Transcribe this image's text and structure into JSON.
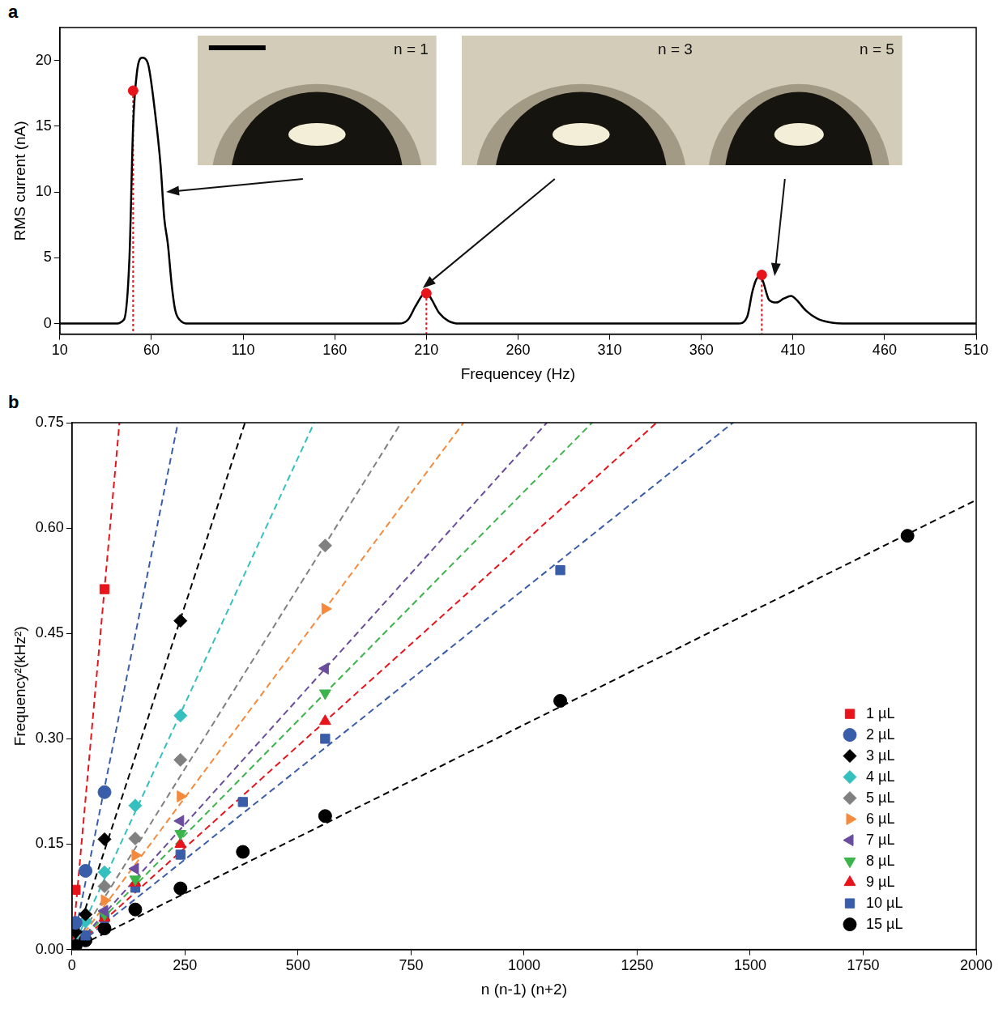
{
  "chart_data": [
    {
      "type": "line",
      "panel": "a",
      "x_label": "Frequencey (Hz)",
      "y_label": "RMS current (nA)",
      "xlim": [
        10,
        510
      ],
      "xticks": [
        10,
        60,
        110,
        160,
        210,
        260,
        310,
        360,
        410,
        460,
        510
      ],
      "ylim": [
        -0.8,
        22.5
      ],
      "yticks": [
        0,
        5,
        10,
        15,
        20
      ],
      "grid": false,
      "series": [
        {
          "type": "line",
          "color": "#000000",
          "x": [
            10,
            40,
            45,
            48,
            50,
            52,
            55,
            58,
            62,
            65,
            67,
            69,
            71,
            73,
            76,
            80,
            195,
            200,
            204,
            208,
            210,
            213,
            217,
            222,
            228,
            380,
            385,
            388,
            391,
            393,
            397,
            401,
            405,
            409,
            412,
            417,
            423,
            430,
            440,
            510
          ],
          "values": [
            0,
            0,
            0.3,
            5,
            15,
            19,
            20.2,
            19.8,
            16,
            12,
            8,
            6,
            3,
            1,
            0.2,
            0,
            0,
            0.3,
            1.3,
            2.2,
            2.4,
            1.8,
            0.8,
            0.2,
            0,
            0,
            0.5,
            2.5,
            3.5,
            3.4,
            1.8,
            1.6,
            1.9,
            2.1,
            1.8,
            1.0,
            0.4,
            0.1,
            0,
            0
          ]
        },
        {
          "type": "scatter",
          "color": "#e8141c",
          "marker": "circle",
          "line_style": "dotted",
          "x": [
            50,
            210,
            393
          ],
          "values": [
            17.7,
            2.3,
            3.7
          ]
        }
      ],
      "annotations": [
        {
          "text": "n = 1",
          "x": 68,
          "y": 10
        },
        {
          "text": "n = 3",
          "x": 208,
          "y": 2.7
        },
        {
          "text": "n = 5",
          "x": 400,
          "y": 3.6
        }
      ]
    },
    {
      "type": "scatter",
      "panel": "b",
      "x_label": "n (n-1) (n+2)",
      "y_label": "Frequency²(kHz²)",
      "xlim": [
        0,
        2000
      ],
      "xticks": [
        0,
        250,
        500,
        750,
        1000,
        1250,
        1500,
        1750,
        2000
      ],
      "ylim": [
        0,
        0.75
      ],
      "yticks": [
        {
          "value": 0,
          "label": "0.00"
        },
        0.15,
        {
          "value": 0.3,
          "label": "0.30"
        },
        0.45,
        {
          "value": 0.6,
          "label": "0.60"
        },
        0.75
      ],
      "grid": false,
      "legend": "lower right",
      "series": [
        {
          "name": "1 µL",
          "color": "#e8141c",
          "marker": "square",
          "line_style": "dashed",
          "fit_slope": 0.00714,
          "x": [
            8,
            72
          ],
          "values": [
            0.085,
            0.513
          ]
        },
        {
          "name": "2 µL",
          "color": "#3a5daa",
          "marker": "circle",
          "line_style": "dashed",
          "fit_slope": 0.0032,
          "x": [
            8,
            30,
            72
          ],
          "values": [
            0.038,
            0.112,
            0.224
          ]
        },
        {
          "name": "3 µL",
          "color": "#000000",
          "marker": "diamond",
          "line_style": "dashed",
          "fit_slope": 0.00196,
          "x": [
            8,
            30,
            72,
            240
          ],
          "values": [
            0.025,
            0.05,
            0.157,
            0.468
          ]
        },
        {
          "name": "4 µL",
          "color": "#35c0c0",
          "marker": "diamond",
          "line_style": "dashed",
          "fit_slope": 0.0014,
          "x": [
            30,
            72,
            140,
            240
          ],
          "values": [
            0.04,
            0.11,
            0.205,
            0.333
          ]
        },
        {
          "name": "5 µL",
          "color": "#808080",
          "marker": "diamond",
          "line_style": "dashed",
          "fit_slope": 0.00103,
          "x": [
            72,
            140,
            240,
            560
          ],
          "values": [
            0.09,
            0.158,
            0.27,
            0.575
          ]
        },
        {
          "name": "6 µL",
          "color": "#f58a3c",
          "marker": "triangle_right",
          "line_style": "dashed",
          "fit_slope": 0.000866,
          "x": [
            72,
            140,
            240,
            560
          ],
          "values": [
            0.07,
            0.134,
            0.218,
            0.485
          ]
        },
        {
          "name": "7 µL",
          "color": "#6a4c9c",
          "marker": "triangle_left",
          "line_style": "dashed",
          "fit_slope": 0.000714,
          "x": [
            72,
            140,
            240,
            560
          ],
          "values": [
            0.055,
            0.115,
            0.183,
            0.4
          ]
        },
        {
          "name": "8 µL",
          "color": "#3cb44b",
          "marker": "triangle_down",
          "line_style": "dashed",
          "fit_slope": 0.000652,
          "x": [
            72,
            140,
            240,
            560
          ],
          "values": [
            0.05,
            0.1,
            0.165,
            0.365
          ]
        },
        {
          "name": "9 µL",
          "color": "#e8141c",
          "marker": "triangle",
          "line_style": "dashed",
          "fit_slope": 0.00058,
          "x": [
            72,
            140,
            240,
            560
          ],
          "values": [
            0.045,
            0.095,
            0.15,
            0.325
          ]
        },
        {
          "name": "10 µL",
          "color": "#3a5daa",
          "marker": "square",
          "line_style": "dashed",
          "fit_slope": 0.000513,
          "x": [
            30,
            72,
            140,
            240,
            378,
            560,
            1080
          ],
          "values": [
            0.02,
            0.045,
            0.088,
            0.135,
            0.21,
            0.3,
            0.54
          ]
        },
        {
          "name": "15 µL",
          "color": "#000000",
          "marker": "circle",
          "line_style": "dashed",
          "fit_slope": 0.00032,
          "x": [
            8,
            30,
            72,
            140,
            240,
            378,
            560,
            1080,
            1848
          ],
          "values": [
            0.005,
            0.013,
            0.03,
            0.057,
            0.087,
            0.139,
            0.19,
            0.354,
            0.589
          ]
        }
      ]
    }
  ]
}
